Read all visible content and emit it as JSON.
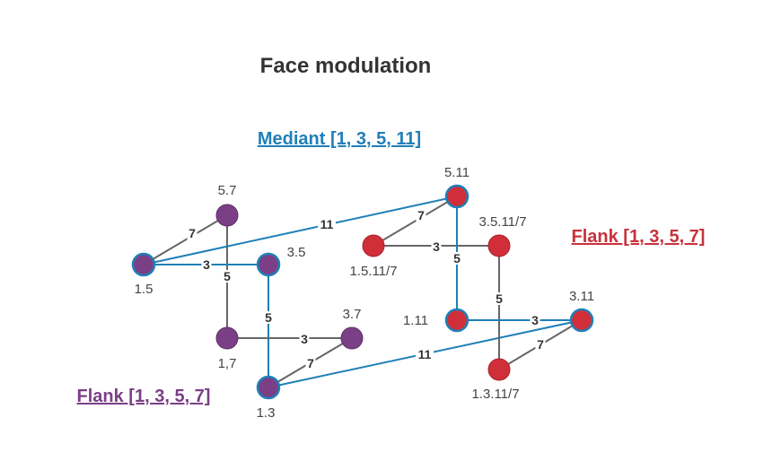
{
  "title": "Face modulation",
  "mediant_heading": {
    "text": "Mediant [1, 3, 5, 11]",
    "color": "#1f7fb8"
  },
  "flank_right_heading": {
    "text": "Flank [1, 3, 5, 7]",
    "color": "#c8323c"
  },
  "flank_left_heading": {
    "text": "Flank [1, 3, 5, 7]",
    "color": "#7b3f86"
  },
  "colors": {
    "purple_fill": "#7b3f86",
    "red_fill": "#d02f3a",
    "highlight_stroke": "#1f7fb8",
    "gray_edge": "#666666",
    "blue_edge": "#1f7fb8"
  },
  "nodes": [
    {
      "id": "p57",
      "label": "5.7",
      "group": "purple",
      "highlight": false
    },
    {
      "id": "p15",
      "label": "1.5",
      "group": "purple",
      "highlight": true
    },
    {
      "id": "p35",
      "label": "3.5",
      "group": "purple",
      "highlight": true
    },
    {
      "id": "p17",
      "label": "1,7",
      "group": "purple",
      "highlight": false
    },
    {
      "id": "p37",
      "label": "3.7",
      "group": "purple",
      "highlight": false
    },
    {
      "id": "p13",
      "label": "1.3",
      "group": "purple",
      "highlight": true
    },
    {
      "id": "r511",
      "label": "5.11",
      "group": "red",
      "highlight": true
    },
    {
      "id": "r1511",
      "label": "1.5.11/7",
      "group": "red",
      "highlight": false
    },
    {
      "id": "r3511",
      "label": "3.5.11/7",
      "group": "red",
      "highlight": false
    },
    {
      "id": "r111",
      "label": "1.11",
      "group": "red",
      "highlight": true
    },
    {
      "id": "r311",
      "label": "3.11",
      "group": "red",
      "highlight": true
    },
    {
      "id": "r1311",
      "label": "1.3.11/7",
      "group": "red",
      "highlight": false
    }
  ],
  "edges": [
    {
      "from": "p15",
      "to": "p57",
      "label": "7",
      "color": "gray"
    },
    {
      "from": "p57",
      "to": "p17",
      "label": "5",
      "color": "gray"
    },
    {
      "from": "p15",
      "to": "p35",
      "label": "3",
      "color": "blue"
    },
    {
      "from": "p35",
      "to": "p13",
      "label": "5",
      "color": "blue"
    },
    {
      "from": "p17",
      "to": "p37",
      "label": "3",
      "color": "gray"
    },
    {
      "from": "p37",
      "to": "p13",
      "label": "7",
      "color": "gray"
    },
    {
      "from": "p15",
      "to": "r511",
      "label": "11",
      "color": "blue"
    },
    {
      "from": "p13",
      "to": "r311",
      "label": "11",
      "color": "blue"
    },
    {
      "from": "r1511",
      "to": "r511",
      "label": "7",
      "color": "gray"
    },
    {
      "from": "r1511",
      "to": "r3511",
      "label": "3",
      "color": "gray"
    },
    {
      "from": "r511",
      "to": "r111",
      "label": "5",
      "color": "blue"
    },
    {
      "from": "r3511",
      "to": "r1311",
      "label": "5",
      "color": "gray"
    },
    {
      "from": "r111",
      "to": "r311",
      "label": "3",
      "color": "blue"
    },
    {
      "from": "r1311",
      "to": "r311",
      "label": "7",
      "color": "gray"
    }
  ]
}
